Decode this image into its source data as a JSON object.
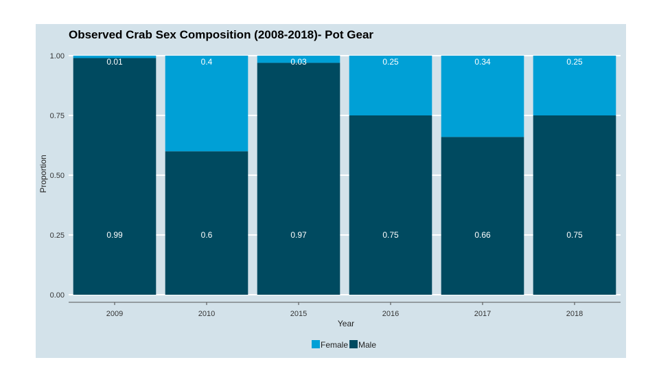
{
  "chart_data": {
    "type": "bar",
    "stacked": true,
    "title": "Observed Crab Sex Composition (2008-2018)- Pot Gear",
    "xlabel": "Year",
    "ylabel": "Proportion",
    "ylim": [
      0,
      1
    ],
    "yticks": [
      "0.00",
      "0.25",
      "0.50",
      "0.75",
      "1.00"
    ],
    "categories": [
      "2009",
      "2010",
      "2015",
      "2016",
      "2017",
      "2018"
    ],
    "series": [
      {
        "name": "Male",
        "color": "#004a60",
        "values": [
          0.99,
          0.6,
          0.97,
          0.75,
          0.66,
          0.75
        ],
        "labels": [
          "0.99",
          "0.6",
          "0.97",
          "0.75",
          "0.66",
          "0.75"
        ]
      },
      {
        "name": "Female",
        "color": "#00a0d6",
        "values": [
          0.01,
          0.4,
          0.03,
          0.25,
          0.34,
          0.25
        ],
        "labels": [
          "0.01",
          "0.4",
          "0.03",
          "0.25",
          "0.34",
          "0.25"
        ]
      }
    ],
    "legend": {
      "position": "bottom",
      "entries": [
        "Female",
        "Male"
      ]
    },
    "grid": true
  }
}
